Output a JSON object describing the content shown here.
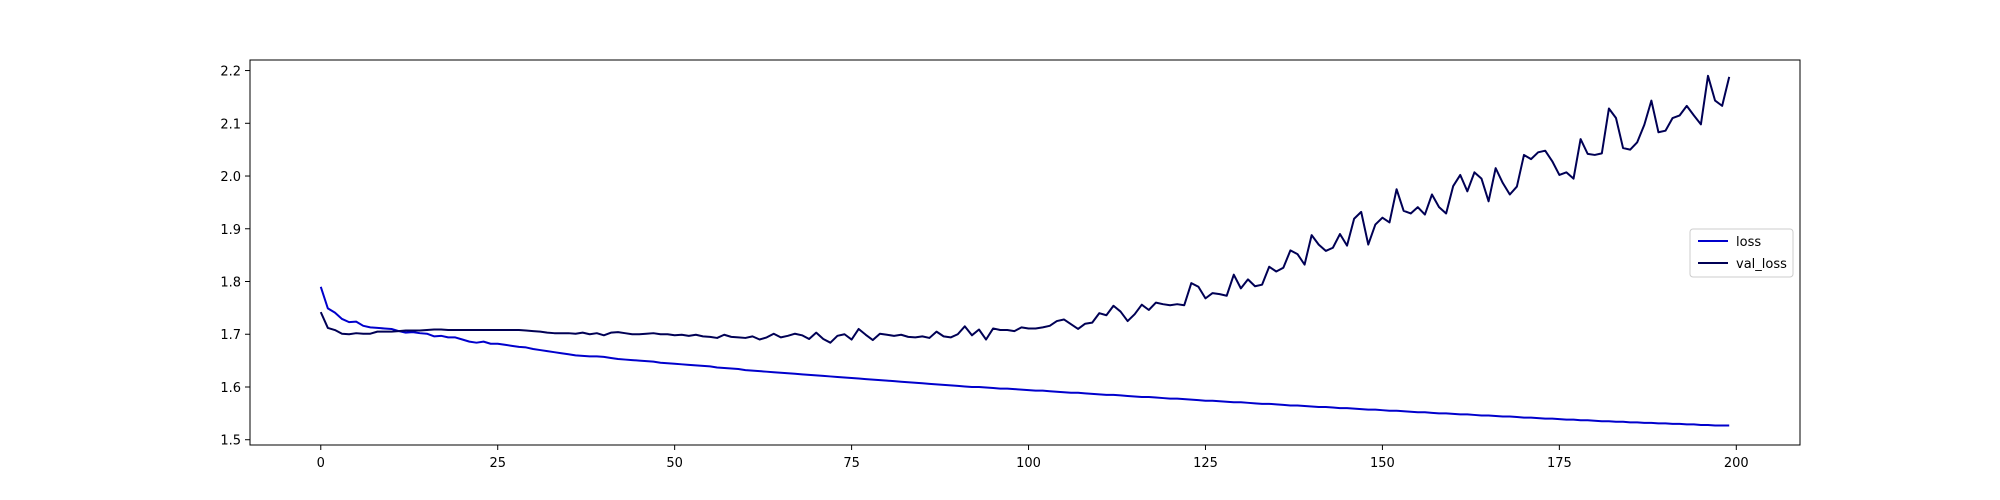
{
  "chart_data": {
    "type": "line",
    "title": "",
    "xlabel": "",
    "ylabel": "",
    "xlim": [
      -10,
      209
    ],
    "ylim": [
      1.49,
      2.22
    ],
    "xticks": [
      0,
      25,
      50,
      75,
      100,
      125,
      150,
      175,
      200
    ],
    "yticks": [
      1.5,
      1.6,
      1.7,
      1.8,
      1.9,
      2.0,
      2.1,
      2.2
    ],
    "xtick_labels": [
      "0",
      "25",
      "50",
      "75",
      "100",
      "125",
      "150",
      "175",
      "200"
    ],
    "ytick_labels": [
      "1.5",
      "1.6",
      "1.7",
      "1.8",
      "1.9",
      "2.0",
      "2.1",
      "2.2"
    ],
    "grid": false,
    "legend_position": "center-right",
    "series": [
      {
        "name": "loss",
        "color": "#0000cc",
        "values": [
          1.79,
          1.749,
          1.741,
          1.729,
          1.723,
          1.724,
          1.716,
          1.713,
          1.712,
          1.711,
          1.71,
          1.706,
          1.703,
          1.704,
          1.702,
          1.701,
          1.696,
          1.697,
          1.694,
          1.694,
          1.69,
          1.686,
          1.684,
          1.686,
          1.682,
          1.682,
          1.68,
          1.678,
          1.676,
          1.675,
          1.672,
          1.67,
          1.668,
          1.666,
          1.664,
          1.662,
          1.66,
          1.659,
          1.658,
          1.658,
          1.657,
          1.655,
          1.653,
          1.652,
          1.651,
          1.65,
          1.649,
          1.648,
          1.646,
          1.645,
          1.644,
          1.643,
          1.642,
          1.641,
          1.64,
          1.639,
          1.637,
          1.636,
          1.635,
          1.634,
          1.632,
          1.631,
          1.63,
          1.629,
          1.628,
          1.627,
          1.626,
          1.625,
          1.624,
          1.623,
          1.622,
          1.621,
          1.62,
          1.619,
          1.618,
          1.617,
          1.616,
          1.615,
          1.614,
          1.613,
          1.612,
          1.611,
          1.61,
          1.609,
          1.608,
          1.607,
          1.606,
          1.605,
          1.604,
          1.603,
          1.602,
          1.601,
          1.6,
          1.6,
          1.599,
          1.598,
          1.597,
          1.597,
          1.596,
          1.595,
          1.594,
          1.593,
          1.593,
          1.592,
          1.591,
          1.59,
          1.589,
          1.589,
          1.588,
          1.587,
          1.586,
          1.585,
          1.585,
          1.584,
          1.583,
          1.582,
          1.581,
          1.581,
          1.58,
          1.579,
          1.578,
          1.578,
          1.577,
          1.576,
          1.575,
          1.574,
          1.574,
          1.573,
          1.572,
          1.571,
          1.571,
          1.57,
          1.569,
          1.568,
          1.568,
          1.567,
          1.566,
          1.565,
          1.565,
          1.564,
          1.563,
          1.562,
          1.562,
          1.561,
          1.56,
          1.56,
          1.559,
          1.558,
          1.557,
          1.557,
          1.556,
          1.555,
          1.555,
          1.554,
          1.553,
          1.552,
          1.552,
          1.551,
          1.55,
          1.55,
          1.549,
          1.548,
          1.548,
          1.547,
          1.546,
          1.546,
          1.545,
          1.544,
          1.544,
          1.543,
          1.542,
          1.542,
          1.541,
          1.54,
          1.54,
          1.539,
          1.538,
          1.538,
          1.537,
          1.537,
          1.536,
          1.535,
          1.535,
          1.534,
          1.534,
          1.533,
          1.533,
          1.532,
          1.532,
          1.531,
          1.531,
          1.53,
          1.53,
          1.529,
          1.529,
          1.528,
          1.528,
          1.527,
          1.527,
          1.527
        ]
      },
      {
        "name": "val_loss",
        "color": "#000055",
        "values": [
          1.742,
          1.712,
          1.708,
          1.701,
          1.7,
          1.702,
          1.701,
          1.701,
          1.705,
          1.705,
          1.705,
          1.706,
          1.707,
          1.707,
          1.707,
          1.708,
          1.709,
          1.709,
          1.708,
          1.708,
          1.708,
          1.708,
          1.708,
          1.708,
          1.708,
          1.708,
          1.708,
          1.708,
          1.708,
          1.707,
          1.706,
          1.705,
          1.703,
          1.702,
          1.702,
          1.702,
          1.701,
          1.703,
          1.7,
          1.702,
          1.698,
          1.703,
          1.704,
          1.702,
          1.7,
          1.7,
          1.701,
          1.702,
          1.7,
          1.7,
          1.698,
          1.699,
          1.697,
          1.699,
          1.696,
          1.695,
          1.693,
          1.699,
          1.695,
          1.694,
          1.693,
          1.696,
          1.69,
          1.694,
          1.701,
          1.694,
          1.697,
          1.701,
          1.698,
          1.691,
          1.703,
          1.691,
          1.684,
          1.697,
          1.7,
          1.69,
          1.71,
          1.699,
          1.689,
          1.701,
          1.699,
          1.697,
          1.699,
          1.695,
          1.694,
          1.696,
          1.693,
          1.705,
          1.696,
          1.694,
          1.7,
          1.715,
          1.698,
          1.709,
          1.69,
          1.711,
          1.708,
          1.708,
          1.706,
          1.713,
          1.711,
          1.711,
          1.713,
          1.716,
          1.725,
          1.728,
          1.719,
          1.71,
          1.72,
          1.722,
          1.74,
          1.736,
          1.754,
          1.743,
          1.725,
          1.738,
          1.756,
          1.746,
          1.76,
          1.757,
          1.755,
          1.757,
          1.755,
          1.797,
          1.79,
          1.768,
          1.778,
          1.776,
          1.773,
          1.813,
          1.787,
          1.804,
          1.791,
          1.794,
          1.828,
          1.819,
          1.826,
          1.859,
          1.852,
          1.832,
          1.888,
          1.87,
          1.858,
          1.864,
          1.89,
          1.868,
          1.919,
          1.932,
          1.87,
          1.908,
          1.921,
          1.912,
          1.975,
          1.934,
          1.929,
          1.941,
          1.927,
          1.965,
          1.941,
          1.929,
          1.981,
          2.002,
          1.971,
          2.007,
          1.995,
          1.952,
          2.015,
          1.987,
          1.965,
          1.98,
          2.04,
          2.032,
          2.045,
          2.048,
          2.028,
          2.002,
          2.007,
          1.995,
          2.07,
          2.042,
          2.04,
          2.043,
          2.128,
          2.11,
          2.053,
          2.05,
          2.064,
          2.097,
          2.143,
          2.083,
          2.086,
          2.11,
          2.115,
          2.133,
          2.115,
          2.098,
          2.19,
          2.143,
          2.133,
          2.188
        ]
      }
    ]
  }
}
